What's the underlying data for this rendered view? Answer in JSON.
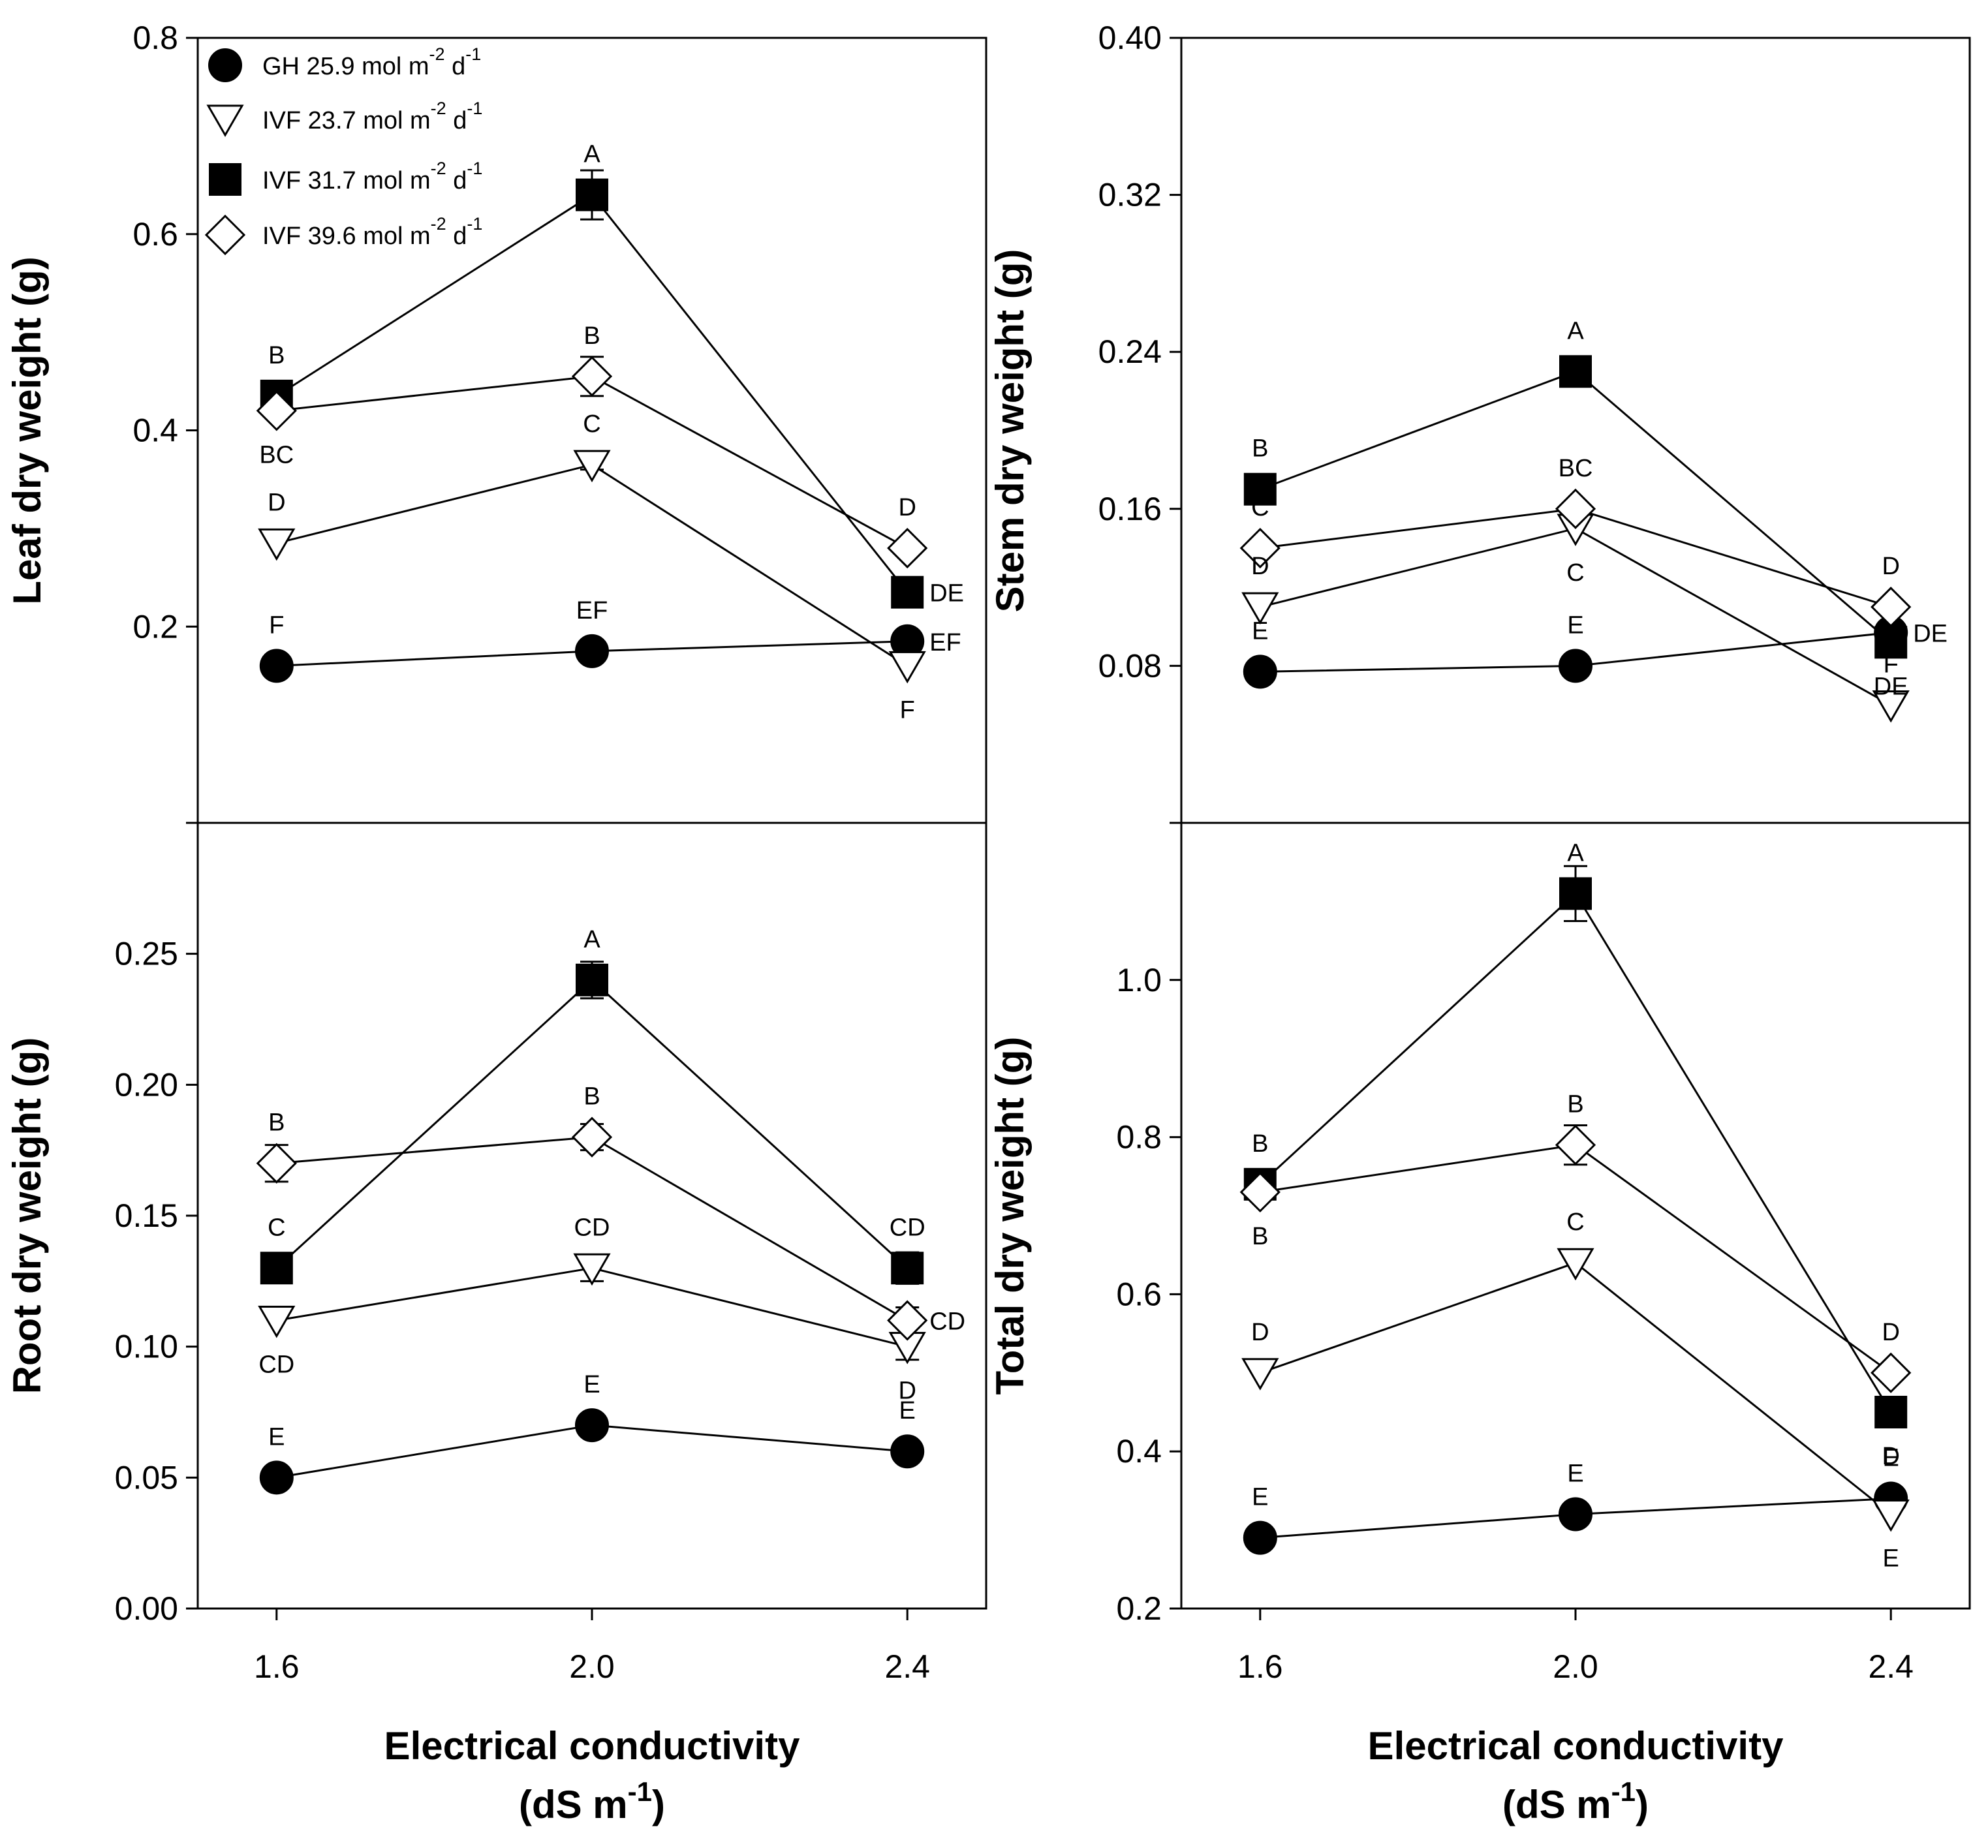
{
  "legend": [
    {
      "marker": "circle-filled",
      "name": "GH 25.9 mol m",
      "sup1": "-2",
      "mid": " d",
      "sup2": "-1"
    },
    {
      "marker": "triangle-open",
      "name": "IVF 23.7 mol m",
      "sup1": "-2",
      "mid": " d",
      "sup2": "-1"
    },
    {
      "marker": "square-filled",
      "name": "IVF 31.7 mol m",
      "sup1": "-2",
      "mid": " d",
      "sup2": "-1"
    },
    {
      "marker": "diamond-open",
      "name": "IVF 39.6 mol m",
      "sup1": "-2",
      "mid": " d",
      "sup2": "-1"
    }
  ],
  "xlabel": {
    "line1": "Electrical conductivity",
    "line2_pre": "(dS m",
    "line2_sup": "-1",
    "line2_post": ")"
  },
  "chart_data": [
    {
      "type": "line",
      "ylabel": "Leaf dry weight (g)",
      "x": [
        1.6,
        2.0,
        2.4
      ],
      "xticks": [
        "1.6",
        "2.0",
        "2.4"
      ],
      "ylim": [
        0,
        0.8
      ],
      "yticks": [
        "0.2",
        "0.4",
        "0.6",
        "0.8"
      ],
      "series": [
        {
          "name": "GH 25.9 mol m-2 d-1",
          "marker": "circle-filled",
          "values": [
            0.16,
            0.175,
            0.185
          ],
          "err": [
            0,
            0,
            0
          ],
          "letters": [
            "F",
            "EF",
            "EF"
          ]
        },
        {
          "name": "IVF 23.7 mol m-2 d-1",
          "marker": "triangle-open",
          "values": [
            0.285,
            0.365,
            0.16
          ],
          "err": [
            0,
            0.005,
            0
          ],
          "letters": [
            "D",
            "C",
            "F"
          ]
        },
        {
          "name": "IVF 31.7 mol m-2 d-1",
          "marker": "square-filled",
          "values": [
            0.435,
            0.64,
            0.235
          ],
          "err": [
            0,
            0.025,
            0
          ],
          "letters": [
            "B",
            "A",
            "DE"
          ]
        },
        {
          "name": "IVF 39.6 mol m-2 d-1",
          "marker": "diamond-open",
          "values": [
            0.42,
            0.455,
            0.28
          ],
          "err": [
            0,
            0.02,
            0
          ],
          "letters": [
            "BC",
            "B",
            "D"
          ]
        }
      ]
    },
    {
      "type": "line",
      "ylabel": "Stem dry weight (g)",
      "x": [
        1.6,
        2.0,
        2.4
      ],
      "xticks": [
        "1.6",
        "2.0",
        "2.4"
      ],
      "ylim": [
        0,
        0.4
      ],
      "yticks": [
        "0.08",
        "0.16",
        "0.24",
        "0.32",
        "0.40"
      ],
      "series": [
        {
          "name": "GH 25.9 mol m-2 d-1",
          "marker": "circle-filled",
          "values": [
            0.077,
            0.08,
            0.097
          ],
          "err": [
            0,
            0,
            0
          ],
          "letters": [
            "E",
            "E",
            "DE"
          ]
        },
        {
          "name": "IVF 23.7 mol m-2 d-1",
          "marker": "triangle-open",
          "values": [
            0.11,
            0.15,
            0.06
          ],
          "err": [
            0,
            0,
            0
          ],
          "letters": [
            "D",
            "C",
            "F"
          ]
        },
        {
          "name": "IVF 31.7 mol m-2 d-1",
          "marker": "square-filled",
          "values": [
            0.17,
            0.23,
            0.092
          ],
          "err": [
            0,
            0,
            0
          ],
          "letters": [
            "B",
            "A",
            "DE"
          ]
        },
        {
          "name": "IVF 39.6 mol m-2 d-1",
          "marker": "diamond-open",
          "values": [
            0.14,
            0.16,
            0.11
          ],
          "err": [
            0,
            0,
            0
          ],
          "letters": [
            "C",
            "BC",
            "D"
          ]
        }
      ]
    },
    {
      "type": "line",
      "ylabel": "Root dry weight (g)",
      "x": [
        1.6,
        2.0,
        2.4
      ],
      "xticks": [
        "1.6",
        "2.0",
        "2.4"
      ],
      "ylim": [
        0,
        0.3
      ],
      "yticks": [
        "0.00",
        "0.05",
        "0.10",
        "0.15",
        "0.20",
        "0.25",
        "0.30"
      ],
      "series": [
        {
          "name": "GH 25.9 mol m-2 d-1",
          "marker": "circle-filled",
          "values": [
            0.05,
            0.07,
            0.06
          ],
          "err": [
            0,
            0,
            0
          ],
          "letters": [
            "E",
            "E",
            "E"
          ]
        },
        {
          "name": "IVF 23.7 mol m-2 d-1",
          "marker": "triangle-open",
          "values": [
            0.11,
            0.13,
            0.1
          ],
          "err": [
            0,
            0.005,
            0.005
          ],
          "letters": [
            "CD",
            "CD",
            "D"
          ]
        },
        {
          "name": "IVF 31.7 mol m-2 d-1",
          "marker": "square-filled",
          "values": [
            0.13,
            0.24,
            0.13
          ],
          "err": [
            0,
            0.007,
            0.006
          ],
          "letters": [
            "C",
            "A",
            "CD"
          ]
        },
        {
          "name": "IVF 39.6 mol m-2 d-1",
          "marker": "diamond-open",
          "values": [
            0.17,
            0.18,
            0.11
          ],
          "err": [
            0.007,
            0.005,
            0.005
          ],
          "letters": [
            "B",
            "B",
            "CD"
          ]
        }
      ]
    },
    {
      "type": "line",
      "ylabel": "Total dry weight (g)",
      "x": [
        1.6,
        2.0,
        2.4
      ],
      "xticks": [
        "1.6",
        "2.0",
        "2.4"
      ],
      "ylim": [
        0.2,
        1.2
      ],
      "yticks": [
        "0.2",
        "0.4",
        "0.6",
        "0.8",
        "1.0",
        "1.2"
      ],
      "series": [
        {
          "name": "GH 25.9 mol m-2 d-1",
          "marker": "circle-filled",
          "values": [
            0.29,
            0.32,
            0.34
          ],
          "err": [
            0,
            0,
            0
          ],
          "letters": [
            "E",
            "E",
            "E"
          ]
        },
        {
          "name": "IVF 23.7 mol m-2 d-1",
          "marker": "triangle-open",
          "values": [
            0.5,
            0.64,
            0.32
          ],
          "err": [
            0,
            0,
            0
          ],
          "letters": [
            "D",
            "C",
            "E"
          ]
        },
        {
          "name": "IVF 31.7 mol m-2 d-1",
          "marker": "square-filled",
          "values": [
            0.74,
            1.11,
            0.45
          ],
          "err": [
            0,
            0.035,
            0
          ],
          "letters": [
            "B",
            "A",
            "D"
          ]
        },
        {
          "name": "IVF 39.6 mol m-2 d-1",
          "marker": "diamond-open",
          "values": [
            0.73,
            0.79,
            0.5
          ],
          "err": [
            0,
            0.025,
            0
          ],
          "letters": [
            "B",
            "B",
            "D"
          ]
        }
      ]
    }
  ]
}
